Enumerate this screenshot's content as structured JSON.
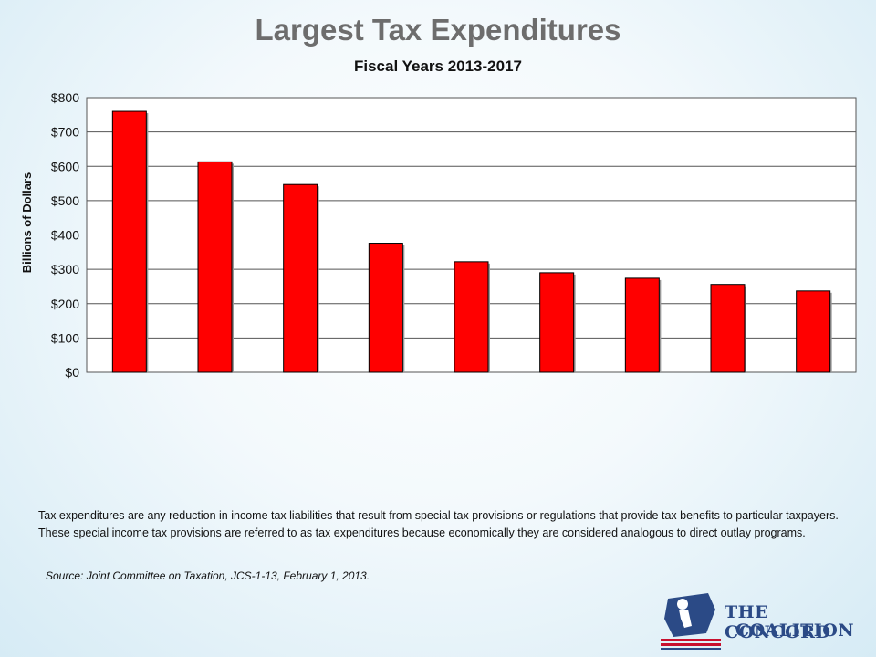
{
  "header": {
    "title": "Largest Tax Expenditures",
    "subtitle": "Fiscal Years 2013-2017"
  },
  "chart_data": {
    "type": "bar",
    "categories": [
      "",
      "",
      "",
      "",
      "",
      "",
      "",
      "",
      ""
    ],
    "values": [
      760,
      613,
      547,
      376,
      322,
      290,
      274,
      256,
      237
    ],
    "ylabel": "Billions of Dollars",
    "ylim": [
      0,
      800
    ],
    "yticks": [
      "$0",
      "$100",
      "$200",
      "$300",
      "$400",
      "$500",
      "$600",
      "$700",
      "$800"
    ],
    "grid": true,
    "bar_color": "#ff0000"
  },
  "note": "Tax expenditures are any reduction in income tax liabilities that result from special tax provisions or regulations that provide tax benefits to particular taxpayers. These special income tax provisions are referred to as tax expenditures because economically they are considered analogous to direct outlay programs.",
  "source": "Source: Joint Committee on Taxation, JCS-1-13, February 1, 2013.",
  "logo": {
    "line1": "THE CONCORD",
    "line2": "COALITION"
  }
}
